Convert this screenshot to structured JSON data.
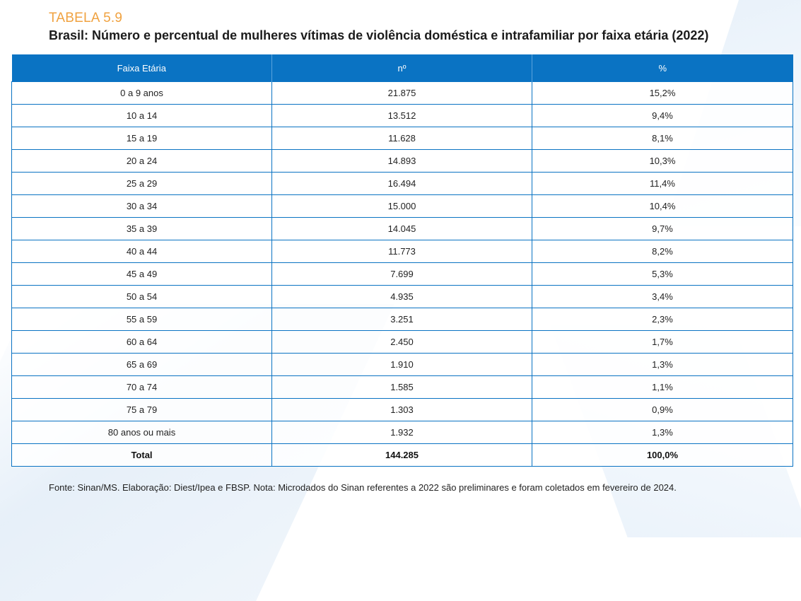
{
  "header": {
    "label": "TABELA 5.9",
    "title": "Brasil: Número e percentual de mulheres vítimas de violência doméstica e intrafamiliar por faixa etária (2022)"
  },
  "table": {
    "columns": [
      "Faixa Etária",
      "nº",
      "%"
    ],
    "rows": [
      [
        "0 a 9 anos",
        "21.875",
        "15,2%"
      ],
      [
        "10 a 14",
        "13.512",
        "9,4%"
      ],
      [
        "15 a 19",
        "11.628",
        "8,1%"
      ],
      [
        "20 a 24",
        "14.893",
        "10,3%"
      ],
      [
        "25 a 29",
        "16.494",
        "11,4%"
      ],
      [
        "30 a 34",
        "15.000",
        "10,4%"
      ],
      [
        "35 a 39",
        "14.045",
        "9,7%"
      ],
      [
        "40 a 44",
        "11.773",
        "8,2%"
      ],
      [
        "45 a 49",
        "7.699",
        "5,3%"
      ],
      [
        "50 a 54",
        "4.935",
        "3,4%"
      ],
      [
        "55 a 59",
        "3.251",
        "2,3%"
      ],
      [
        "60 a 64",
        "2.450",
        "1,7%"
      ],
      [
        "65 a 69",
        "1.910",
        "1,3%"
      ],
      [
        "70 a 74",
        "1.585",
        "1,1%"
      ],
      [
        "75 a 79",
        "1.303",
        "0,9%"
      ],
      [
        "80 anos ou mais",
        "1.932",
        "1,3%"
      ]
    ],
    "total": [
      "Total",
      "144.285",
      "100,0%"
    ]
  },
  "footer": {
    "note": "Fonte: Sinan/MS. Elaboração: Diest/Ipea e FBSP. Nota: Microdados do Sinan referentes a 2022 são preliminares e foram coletados em fevereiro de 2024."
  },
  "colors": {
    "label_orange": "#f0a240",
    "header_blue": "#0a73c3",
    "border_blue": "#0a73c3"
  }
}
